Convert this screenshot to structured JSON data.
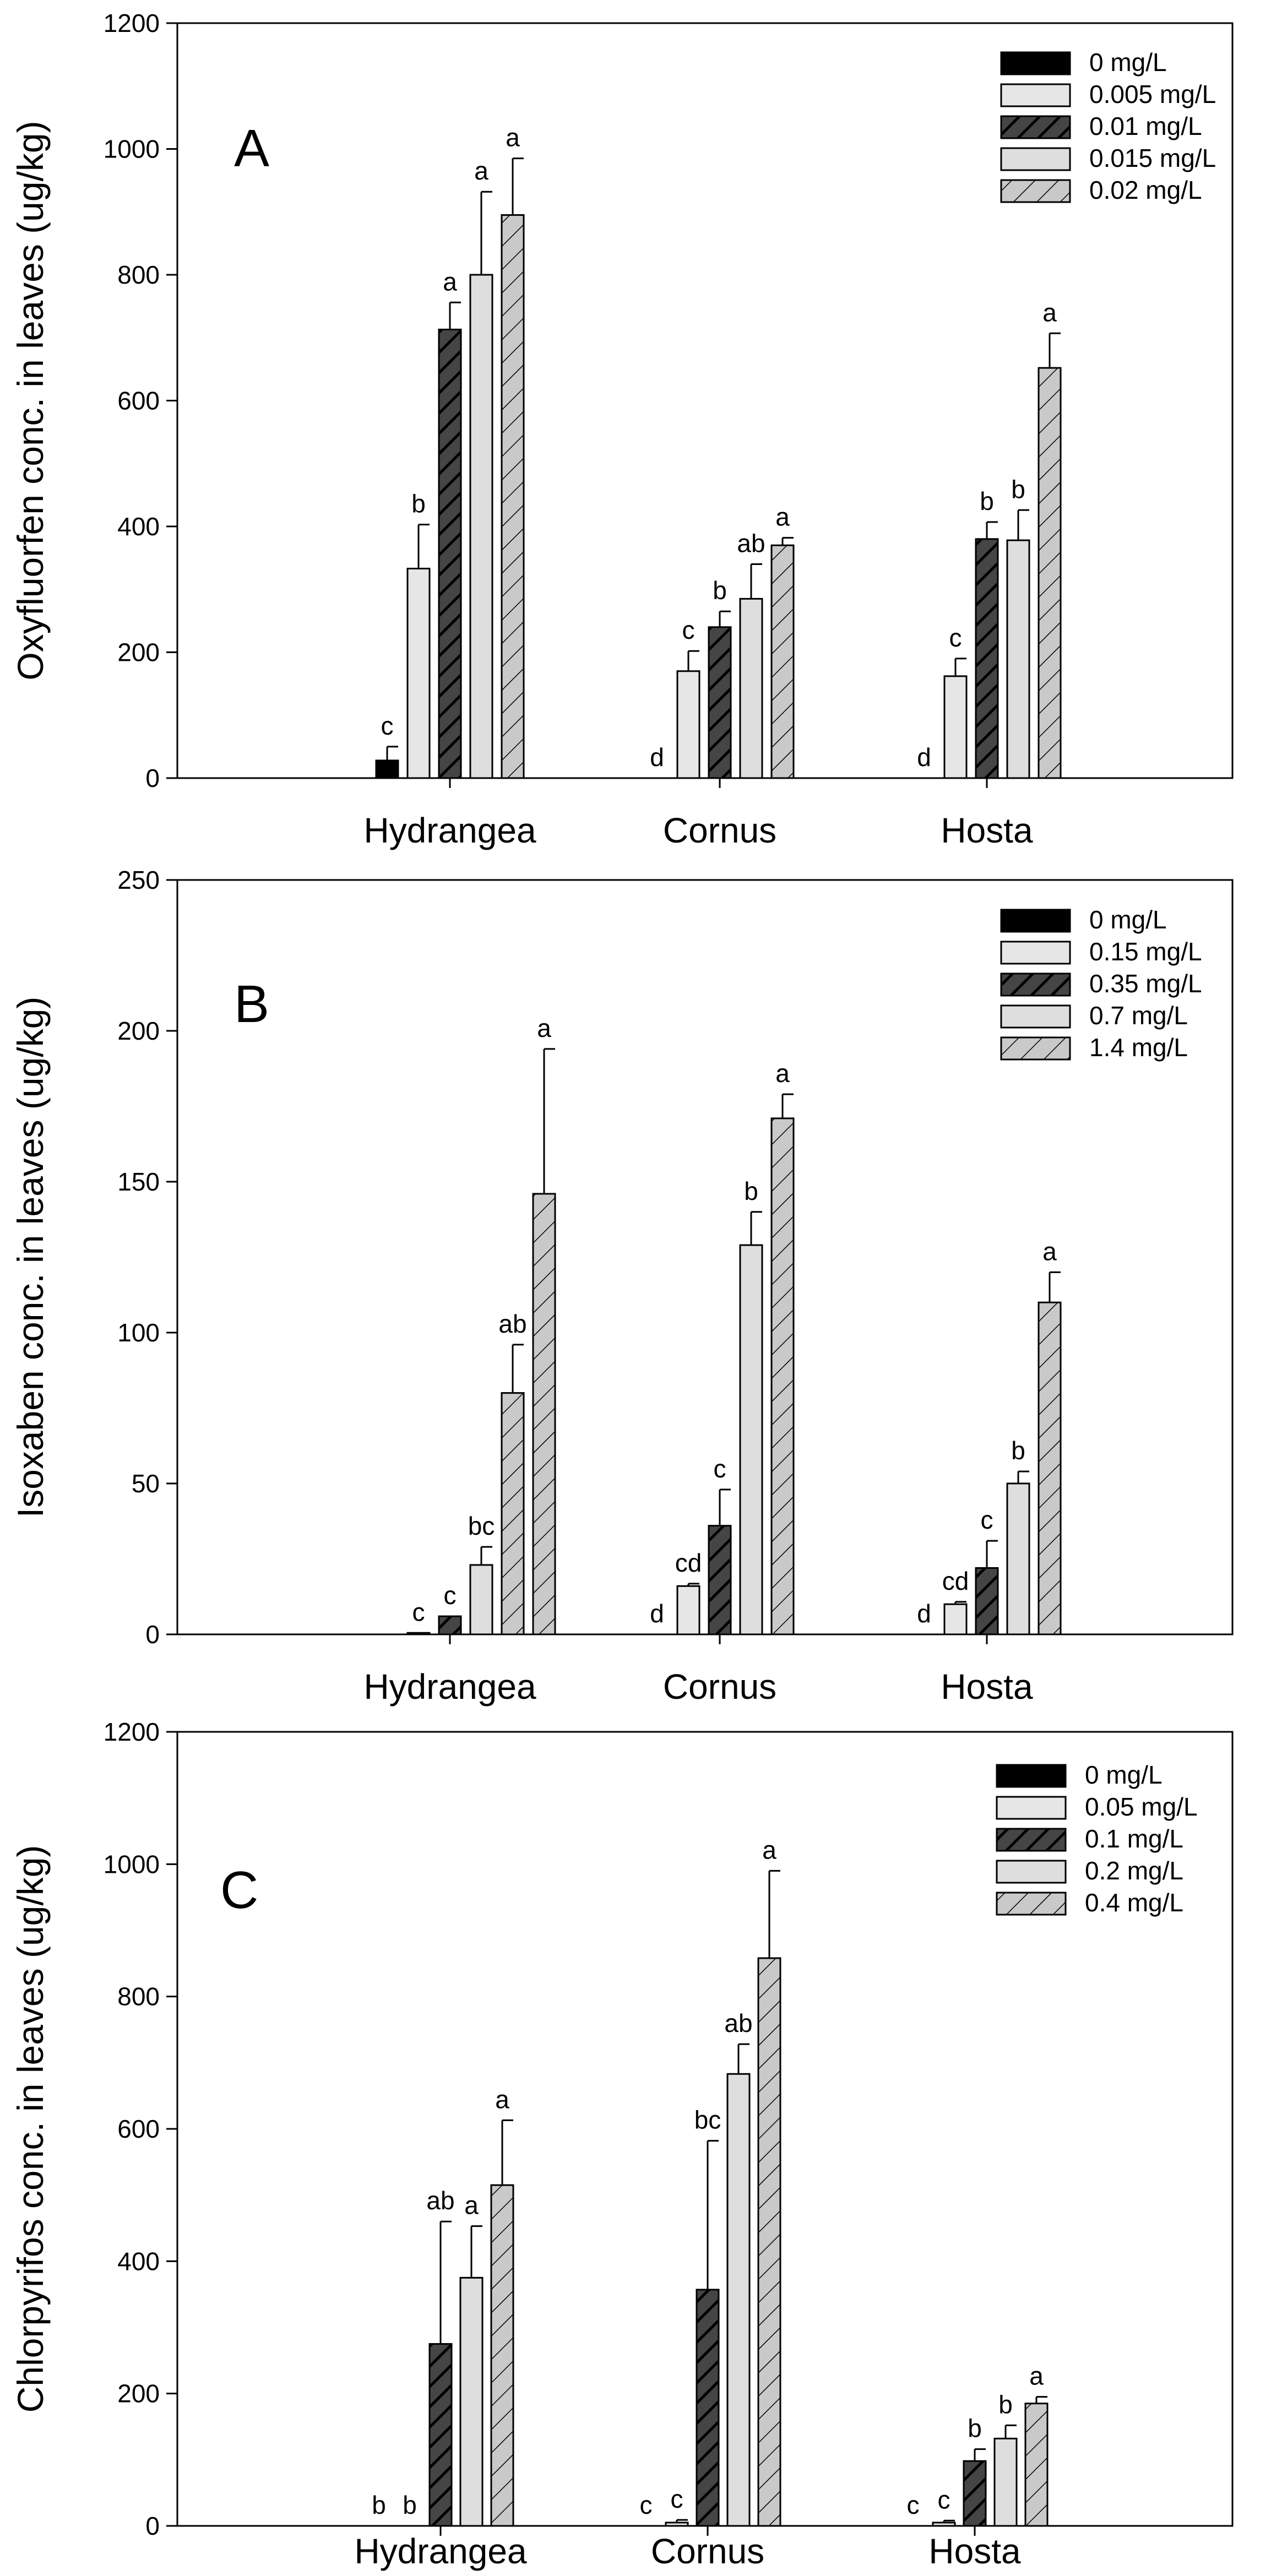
{
  "chart_data": [
    {
      "type": "bar",
      "panel_label": "A",
      "ylabel": "Oxyfluorfen conc. in leaves (ug/kg)",
      "ylim": [
        0,
        1200
      ],
      "yticks": [
        0,
        200,
        400,
        600,
        800,
        1000,
        1200
      ],
      "categories": [
        "Hydrangea",
        "Cornus",
        "Hosta"
      ],
      "legend_position": "top-right",
      "series": [
        {
          "name": "0 mg/L",
          "values": [
            28,
            0,
            0
          ],
          "errors": [
            22,
            0,
            0
          ],
          "letters": [
            "c",
            "d",
            "d"
          ]
        },
        {
          "name": "0.005 mg/L",
          "values": [
            333,
            170,
            162
          ],
          "errors": [
            70,
            32,
            28
          ],
          "letters": [
            "b",
            "c",
            "c"
          ]
        },
        {
          "name": "0.01 mg/L",
          "values": [
            713,
            240,
            380
          ],
          "errors": [
            43,
            25,
            27
          ],
          "letters": [
            "a",
            "b",
            "b"
          ]
        },
        {
          "name": "0.015 mg/L",
          "values": [
            800,
            285,
            378
          ],
          "errors": [
            132,
            55,
            48
          ],
          "letters": [
            "a",
            "ab",
            "b"
          ]
        },
        {
          "name": "0.02 mg/L",
          "values": [
            895,
            370,
            652
          ],
          "errors": [
            90,
            12,
            55
          ],
          "letters": [
            "a",
            "a",
            "a"
          ]
        }
      ]
    },
    {
      "type": "bar",
      "panel_label": "B",
      "ylabel": "Isoxaben conc. in leaves (ug/kg)",
      "ylim": [
        0,
        250
      ],
      "yticks": [
        0,
        50,
        100,
        150,
        200,
        250
      ],
      "categories": [
        "Hydrangea",
        "Cornus",
        "Hosta"
      ],
      "legend_position": "top-right",
      "series": [
        {
          "name": "0 mg/L",
          "values": [
            0,
            0,
            0
          ],
          "errors": [
            0,
            0,
            0
          ],
          "letters": [
            "",
            "d",
            "d"
          ]
        },
        {
          "name": "0.15 mg/L",
          "values": [
            0.5,
            16,
            10
          ],
          "errors": [
            0,
            0.8,
            0.8
          ],
          "letters": [
            "c",
            "cd",
            "cd"
          ]
        },
        {
          "name": "0.35 mg/L",
          "values": [
            6,
            36,
            22
          ],
          "errors": [
            0,
            12,
            9
          ],
          "letters": [
            "c",
            "c",
            "c"
          ]
        },
        {
          "name": "0.7 mg/L",
          "values": [
            23,
            129,
            50
          ],
          "errors": [
            6,
            11,
            4
          ],
          "letters": [
            "bc",
            "b",
            "b"
          ]
        },
        {
          "name": "1.4 mg/L",
          "values": [
            80,
            171,
            110
          ],
          "errors": [
            16,
            8,
            10
          ],
          "letters": [
            "ab",
            "a",
            "a"
          ]
        },
        {
          "name": "",
          "values": [
            146,
            null,
            null
          ],
          "errors": [
            48,
            null,
            null
          ],
          "letters": [
            "a",
            "",
            ""
          ]
        }
      ]
    },
    {
      "type": "bar",
      "panel_label": "C",
      "ylabel": "Chlorpyrifos conc. in leaves (ug/kg)",
      "ylim": [
        0,
        1200
      ],
      "yticks": [
        0,
        200,
        400,
        600,
        800,
        1000,
        1200
      ],
      "categories": [
        "Hydrangea",
        "Cornus",
        "Hosta"
      ],
      "legend_position": "top-right",
      "series": [
        {
          "name": "0 mg/L",
          "values": [
            0,
            0,
            0
          ],
          "errors": [
            0,
            0,
            0
          ],
          "letters": [
            "b",
            "c",
            "c"
          ]
        },
        {
          "name": "0.05 mg/L",
          "values": [
            0,
            5,
            5
          ],
          "errors": [
            0,
            4,
            3
          ],
          "letters": [
            "b",
            "c",
            "c"
          ]
        },
        {
          "name": "0.1 mg/L",
          "values": [
            275,
            357,
            98
          ],
          "errors": [
            185,
            225,
            18
          ],
          "letters": [
            "ab",
            "bc",
            "b"
          ]
        },
        {
          "name": "0.2 mg/L",
          "values": [
            375,
            683,
            132
          ],
          "errors": [
            78,
            45,
            20
          ],
          "letters": [
            "a",
            "ab",
            "b"
          ]
        },
        {
          "name": "0.4 mg/L",
          "values": [
            515,
            858,
            185
          ],
          "errors": [
            98,
            132,
            10
          ],
          "letters": [
            "a",
            "a",
            "a"
          ]
        }
      ]
    }
  ]
}
